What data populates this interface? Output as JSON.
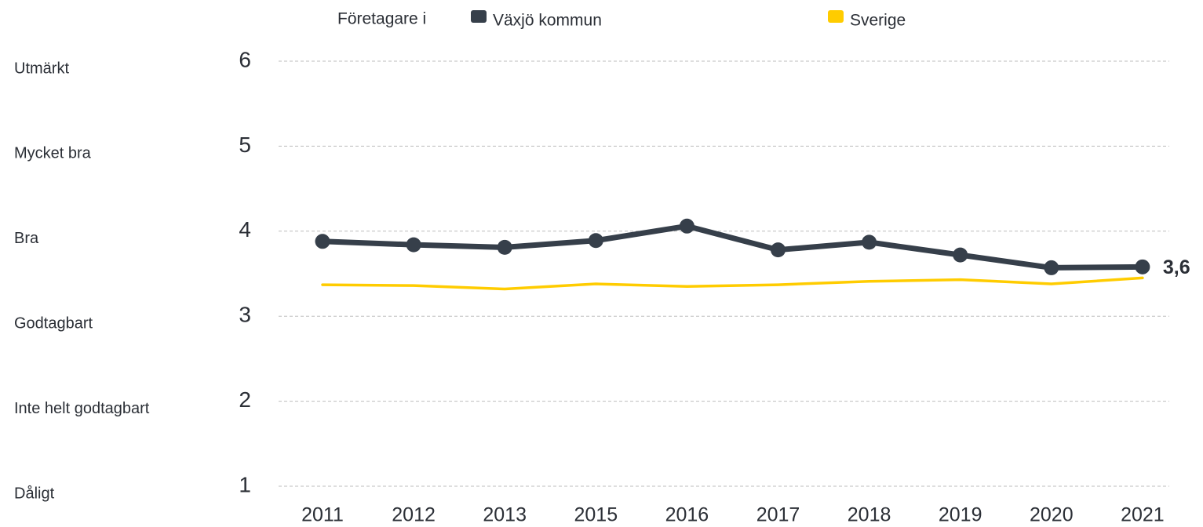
{
  "chart_data": {
    "type": "line",
    "legend_title": "Företagare i",
    "categories": [
      "2011",
      "2012",
      "2013",
      "2015",
      "2016",
      "2017",
      "2018",
      "2019",
      "2020",
      "2021"
    ],
    "series": [
      {
        "name": "Växjö kommun",
        "color": "#363f4a",
        "values": [
          3.88,
          3.84,
          3.81,
          3.89,
          4.06,
          3.78,
          3.87,
          3.72,
          3.57,
          3.58
        ],
        "value_labels": [
          null,
          null,
          null,
          null,
          null,
          null,
          null,
          null,
          null,
          "3,6"
        ]
      },
      {
        "name": "Sverige",
        "color": "#ffcc00",
        "values": [
          3.37,
          3.36,
          3.32,
          3.38,
          3.35,
          3.37,
          3.41,
          3.43,
          3.38,
          3.45
        ]
      }
    ],
    "ylim": [
      1,
      6
    ],
    "yticks": [
      1,
      2,
      3,
      4,
      5,
      6
    ],
    "y_category_labels": [
      "Dåligt",
      "Inte helt godtagbart",
      "Godtagbart",
      "Bra",
      "Mycket bra",
      "Utmärkt"
    ],
    "grid": true
  }
}
